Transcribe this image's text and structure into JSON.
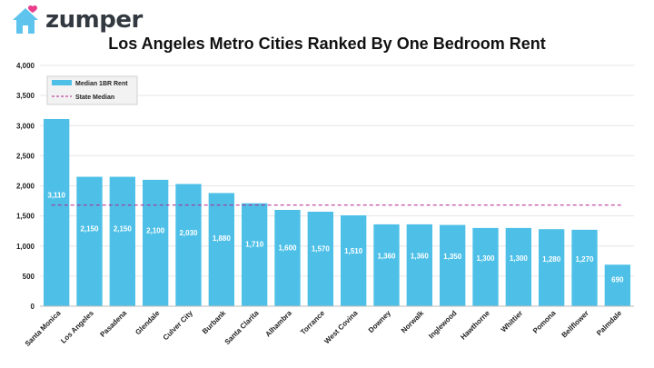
{
  "brand": {
    "name": "zumper",
    "logo_icon": "house-with-heart-icon",
    "colors": {
      "house": "#5ec4ee",
      "heart": "#e83e8c",
      "text": "#333940"
    }
  },
  "chart_data": {
    "type": "bar",
    "title": "Los Angeles Metro Cities Ranked By One Bedroom Rent",
    "xlabel": "",
    "ylabel": "",
    "ylim": [
      0,
      4000
    ],
    "yticks": [
      "0",
      "500",
      "1,000",
      "1,500",
      "2,000",
      "2,500",
      "3,000",
      "3,500",
      "4,000"
    ],
    "ytick_values": [
      0,
      500,
      1000,
      1500,
      2000,
      2500,
      3000,
      3500,
      4000
    ],
    "grid": true,
    "legend_position": "top-left",
    "categories": [
      "Santa Monica",
      "Los Angeles",
      "Pasadena",
      "Glendale",
      "Culver City",
      "Burbank",
      "Santa Clarita",
      "Alhambra",
      "Torrance",
      "West Covina",
      "Downey",
      "Norwalk",
      "Inglewood",
      "Hawthorne",
      "Whittier",
      "Pomona",
      "Bellflower",
      "Palmdale"
    ],
    "series": [
      {
        "name": "Median 1BR Rent",
        "color": "#4ec0e8",
        "values": [
          3110,
          2150,
          2150,
          2100,
          2030,
          1880,
          1710,
          1600,
          1570,
          1510,
          1360,
          1360,
          1350,
          1300,
          1300,
          1280,
          1270,
          690
        ],
        "labels": [
          "3,110",
          "2,150",
          "2,150",
          "2,100",
          "2,030",
          "1,880",
          "1,710",
          "1,600",
          "1,570",
          "1,510",
          "1,360",
          "1,360",
          "1,350",
          "1,300",
          "1,300",
          "1,280",
          "1,270",
          "690"
        ]
      }
    ],
    "reference_lines": [
      {
        "name": "State Median",
        "value": 1680,
        "color": "#b0208a",
        "style": "dashed"
      }
    ]
  }
}
